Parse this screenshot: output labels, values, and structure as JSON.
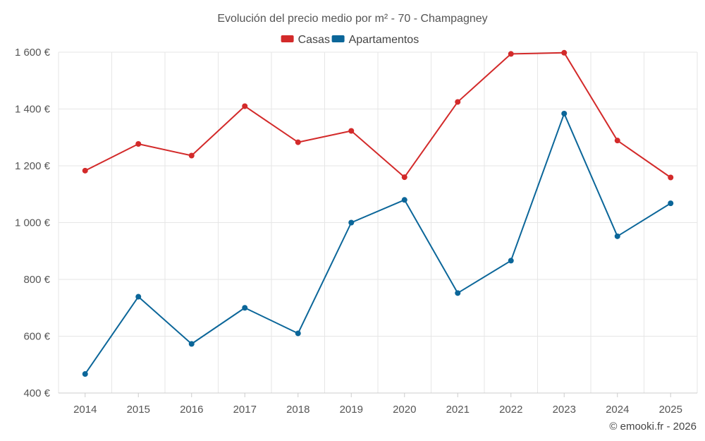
{
  "chart_data": {
    "type": "line",
    "title": "Evolución del precio medio por m² - 70 - Champagney",
    "categories": [
      "2014",
      "2015",
      "2016",
      "2017",
      "2018",
      "2019",
      "2020",
      "2021",
      "2022",
      "2023",
      "2024",
      "2025"
    ],
    "series": [
      {
        "name": "Casas",
        "color": "#d32a2a",
        "values": [
          1183,
          1277,
          1236,
          1410,
          1283,
          1323,
          1160,
          1425,
          1594,
          1598,
          1289,
          1159
        ]
      },
      {
        "name": "Apartamentos",
        "color": "#0b6699",
        "values": [
          467,
          739,
          573,
          700,
          610,
          1000,
          1080,
          752,
          866,
          1384,
          952,
          1068
        ]
      }
    ],
    "yticks": [
      400,
      600,
      800,
      1000,
      1200,
      1400,
      1600
    ],
    "ytick_labels": [
      "400 €",
      "600 €",
      "800 €",
      "1 000 €",
      "1 200 €",
      "1 400 €",
      "1 600 €"
    ],
    "ylim": [
      400,
      1600
    ],
    "xlabel": "",
    "ylabel": "",
    "grid": true,
    "legend_position": "top-center"
  },
  "credit": "© emooki.fr - 2026"
}
